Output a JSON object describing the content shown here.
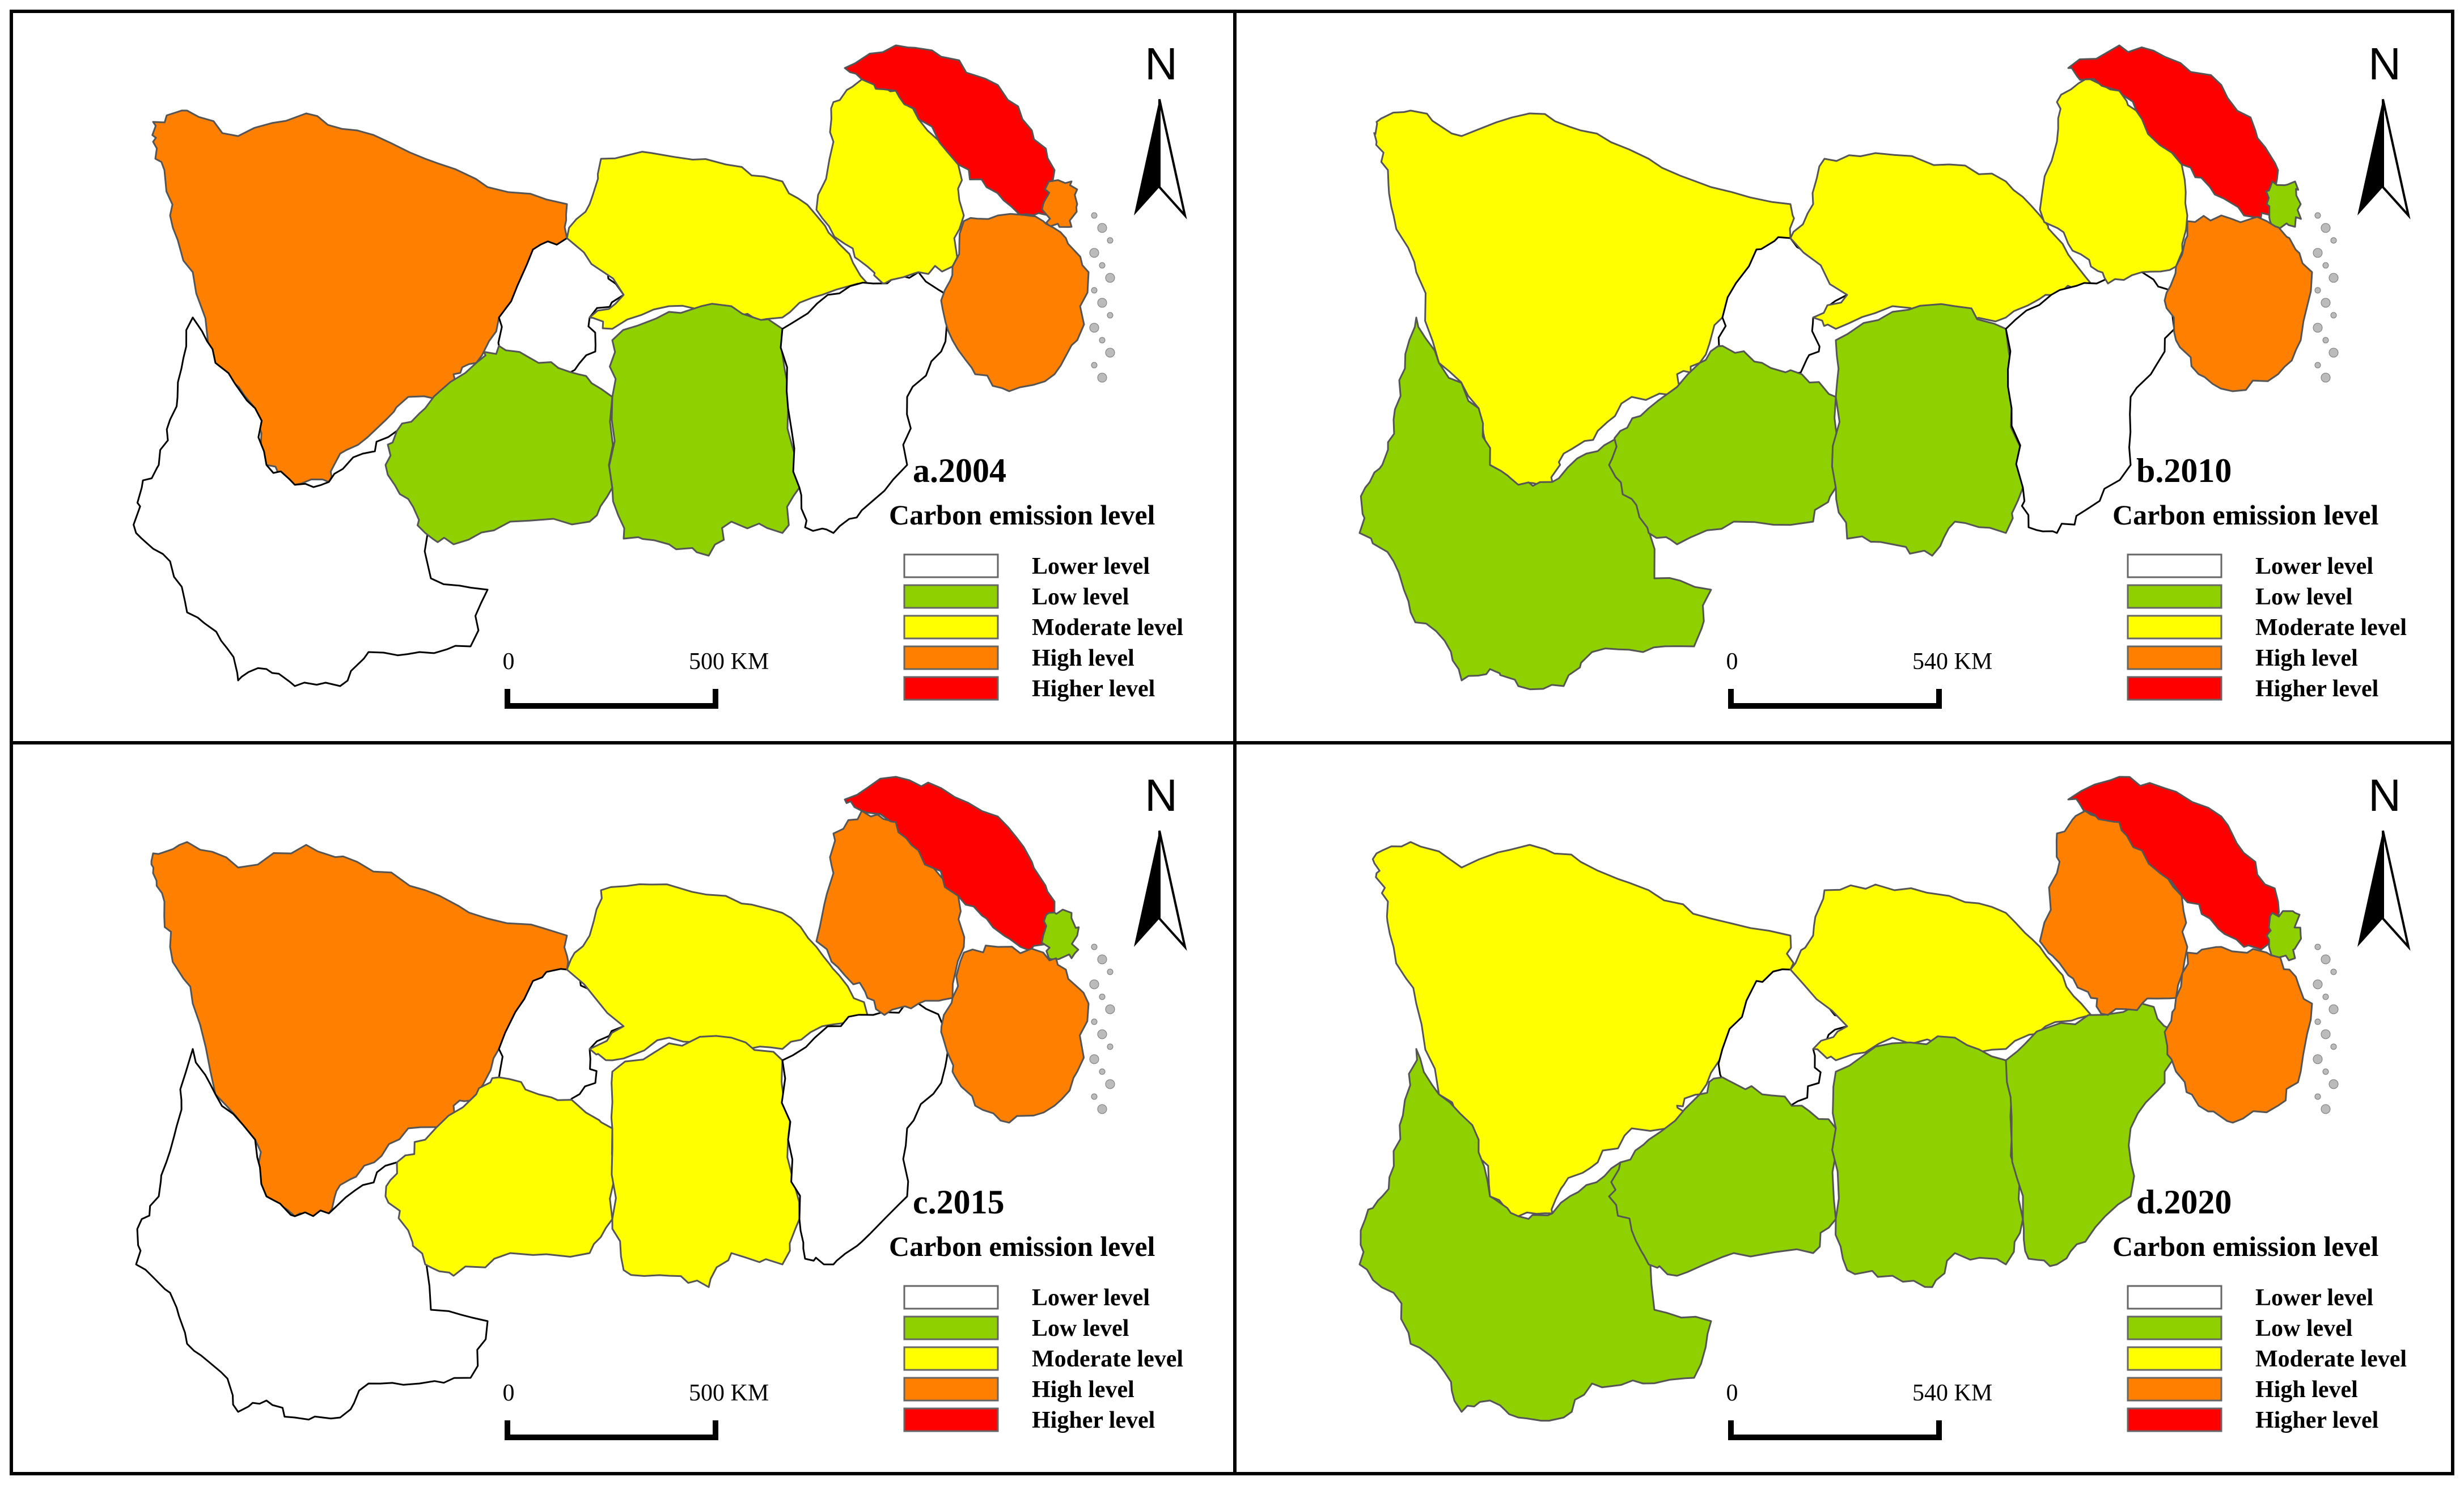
{
  "legend": {
    "title": "Carbon emission level",
    "items": [
      {
        "key": "lower",
        "label": "Lower level",
        "color": "#ffffff"
      },
      {
        "key": "low",
        "label": "Low level",
        "color": "#8fd100"
      },
      {
        "key": "moderate",
        "label": "Moderate level",
        "color": "#ffff00"
      },
      {
        "key": "high",
        "label": "High level",
        "color": "#ff8000"
      },
      {
        "key": "higher",
        "label": "Higher  level",
        "color": "#ff0000"
      }
    ]
  },
  "north_label": "N",
  "panels": [
    {
      "id": "a",
      "title": "a.2004",
      "scale_start": "0",
      "scale_end": "500 KM",
      "regions": {
        "sichuan": "high",
        "yunnan": "lower",
        "guizhou": "low",
        "chongqing": "lower",
        "hubei": "moderate",
        "hunan": "low",
        "jiangxi": "lower",
        "anhui": "moderate",
        "jiangsu": "higher",
        "zhejiang": "high",
        "shanghai": "high"
      }
    },
    {
      "id": "b",
      "title": "b.2010",
      "scale_start": "0",
      "scale_end": "540 KM",
      "regions": {
        "sichuan": "moderate",
        "yunnan": "low",
        "guizhou": "low",
        "chongqing": "lower",
        "hubei": "moderate",
        "hunan": "low",
        "jiangxi": "lower",
        "anhui": "moderate",
        "jiangsu": "higher",
        "zhejiang": "high",
        "shanghai": "low"
      }
    },
    {
      "id": "c",
      "title": "c.2015",
      "scale_start": "0",
      "scale_end": "500 KM",
      "regions": {
        "sichuan": "high",
        "yunnan": "lower",
        "guizhou": "moderate",
        "chongqing": "lower",
        "hubei": "moderate",
        "hunan": "moderate",
        "jiangxi": "lower",
        "anhui": "high",
        "jiangsu": "higher",
        "zhejiang": "high",
        "shanghai": "low"
      }
    },
    {
      "id": "d",
      "title": "d.2020",
      "scale_start": "0",
      "scale_end": "540 KM",
      "regions": {
        "sichuan": "moderate",
        "yunnan": "low",
        "guizhou": "low",
        "chongqing": "lower",
        "hubei": "moderate",
        "hunan": "low",
        "jiangxi": "low",
        "anhui": "high",
        "jiangsu": "higher",
        "zhejiang": "high",
        "shanghai": "low"
      }
    }
  ]
}
